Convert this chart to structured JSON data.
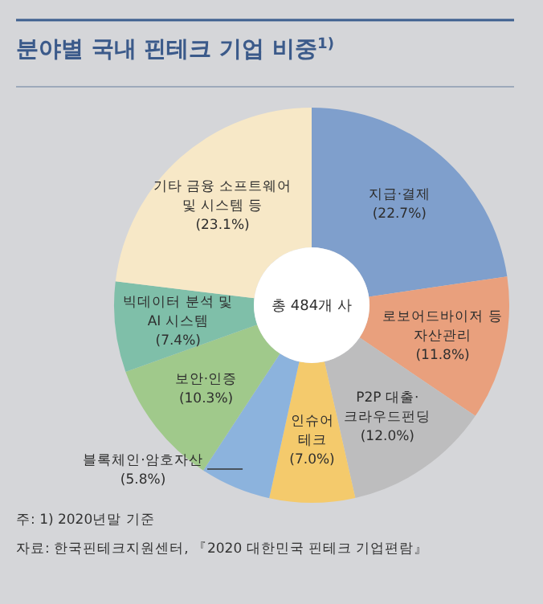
{
  "chart_data": {
    "type": "donut",
    "title": "분야별 국내 핀테크 기업 비중$^{1)}$",
    "categories": [
      "지급·결제",
      "로보어드바이저 등\n자산관리",
      "P2P 대출·\n크라우드펀딩",
      "인슈어\n테크",
      "블록체인·암호자산",
      "보안·인증",
      "빅데이터 분석 및\nAI 시스템",
      "기타 금융 소프트웨어\n및 시스템 등"
    ],
    "values": [
      22.7,
      11.8,
      12.0,
      7.0,
      5.8,
      10.3,
      7.4,
      23.1
    ],
    "colors": [
      "#7f9fcc",
      "#e9a07d",
      "#bdbdbe",
      "#f4ca6c",
      "#8cb3dd",
      "#a0c98b",
      "#7fbfa9",
      "#f7e8c7"
    ],
    "value_labels": [
      "(22.7%)",
      "(11.8%)",
      "(12.0%)",
      "(7.0%)",
      "(5.8%)",
      "(10.3%)",
      "(7.4%)",
      "(23.1%)"
    ],
    "annotations": [
      "총 484개 사",
      "주: 1) 2020년말 기준",
      "자료: 한국핀테크지원센터, 『2020 대한민국 핀테크 기업편람』"
    ]
  }
}
